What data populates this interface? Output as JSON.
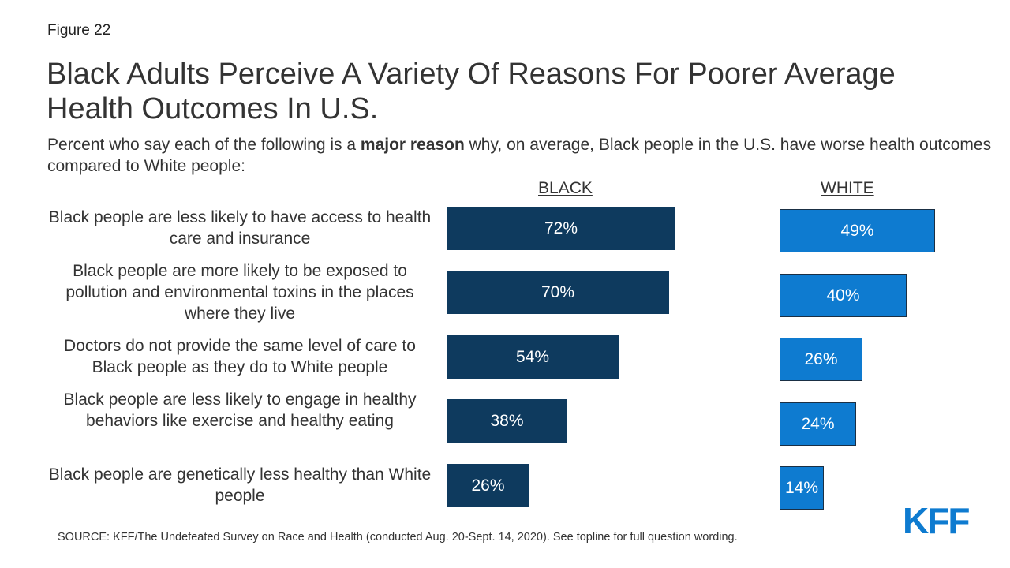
{
  "figure_label": "Figure 22",
  "title": "Black Adults Perceive A Variety Of Reasons For Poorer Average Health Outcomes In U.S.",
  "subtitle": {
    "before": "Percent who say each of the following is a ",
    "bold": "major reason",
    "after": " why, on average, Black people in the U.S. have worse health outcomes compared to White people:"
  },
  "source": "SOURCE: KFF/The Undefeated Survey on Race and Health (conducted Aug. 20-Sept. 14, 2020). See topline for full question wording.",
  "logo": "KFF",
  "colors": {
    "black_series": "#0e3a5e",
    "white_series": "#0e7bd0"
  },
  "chart_data": {
    "type": "bar",
    "orientation": "horizontal",
    "categories": [
      "Black people are less likely to have access to health care and insurance",
      "Black people are more likely to be exposed to pollution and environmental toxins in the places where they live",
      "Doctors do not provide the same level of care to Black people as they do to White people",
      "Black people are less likely to engage in healthy behaviors like exercise and healthy eating",
      "Black people are genetically less healthy than White people"
    ],
    "series": [
      {
        "name": "BLACK",
        "values": [
          72,
          70,
          54,
          38,
          26
        ],
        "labels": [
          "72%",
          "70%",
          "54%",
          "38%",
          "26%"
        ],
        "color": "#0e3a5e"
      },
      {
        "name": "WHITE",
        "values": [
          49,
          40,
          26,
          24,
          14
        ],
        "labels": [
          "49%",
          "40%",
          "26%",
          "24%",
          "14%"
        ],
        "color": "#0e7bd0"
      }
    ],
    "unit": "%"
  }
}
